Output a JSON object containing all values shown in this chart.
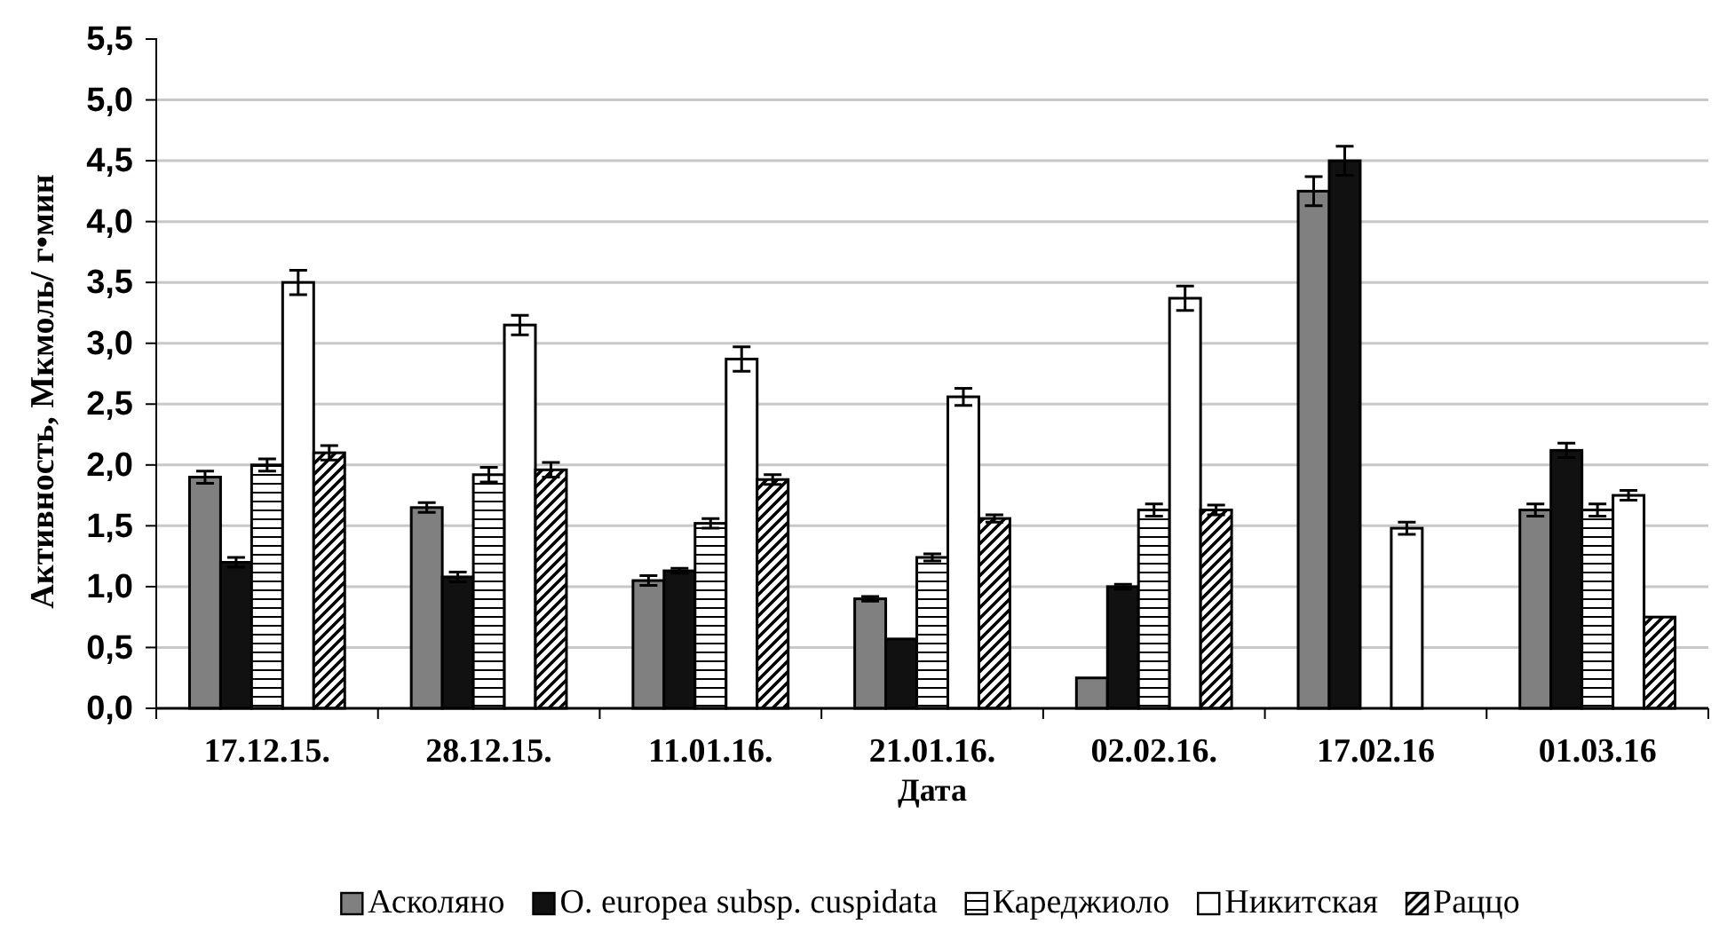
{
  "chart_data": {
    "type": "bar",
    "xlabel": "Дата",
    "ylabel": "Активность,  Мкмоль/ г•мин",
    "categories": [
      "17.12.15.",
      "28.12.15.",
      "11.01.16.",
      "21.01.16.",
      "02.02.16.",
      "17.02.16",
      "01.03.16"
    ],
    "series": [
      {
        "name": "Асколяно",
        "color": "#808080",
        "values": [
          1.9,
          1.65,
          1.05,
          0.9,
          0.25,
          4.25,
          1.63
        ],
        "errors": [
          0.05,
          0.04,
          0.04,
          0.02,
          null,
          0.12,
          0.05
        ]
      },
      {
        "name": "O. europea subsp. cuspidata",
        "color": "#111111",
        "values": [
          1.2,
          1.08,
          1.13,
          0.57,
          1.0,
          4.5,
          2.12
        ],
        "errors": [
          0.04,
          0.04,
          0.02,
          null,
          0.02,
          0.12,
          0.06
        ]
      },
      {
        "name": "Кареджиоло",
        "color": "#000000",
        "values": [
          2.0,
          1.92,
          1.52,
          1.24,
          1.63,
          null,
          1.63
        ],
        "errors": [
          0.05,
          0.06,
          0.04,
          0.03,
          0.05,
          null,
          0.05
        ]
      },
      {
        "name": "Никитская",
        "color": "#ffffff",
        "values": [
          3.5,
          3.15,
          2.87,
          2.56,
          3.37,
          1.48,
          1.75
        ],
        "errors": [
          0.1,
          0.08,
          0.1,
          0.07,
          0.1,
          0.05,
          0.04
        ]
      },
      {
        "name": "Раццо",
        "color": "#000000",
        "values": [
          2.1,
          1.96,
          1.88,
          1.56,
          1.63,
          null,
          0.75
        ],
        "errors": [
          0.06,
          0.06,
          0.04,
          0.03,
          0.04,
          null,
          null
        ]
      }
    ],
    "ylim": [
      0,
      5.5
    ],
    "yticks": [
      {
        "value": 0,
        "label": "0,0"
      },
      {
        "value": 0.5,
        "label": "0,5"
      },
      {
        "value": 1,
        "label": "1,0"
      },
      {
        "value": 1.5,
        "label": "1,5"
      },
      {
        "value": 2,
        "label": "2,0"
      },
      {
        "value": 2.5,
        "label": "2,5"
      },
      {
        "value": 3,
        "label": "3,0"
      },
      {
        "value": 3.5,
        "label": "3,5"
      },
      {
        "value": 4,
        "label": "4,0"
      },
      {
        "value": 4.5,
        "label": "4,5"
      },
      {
        "value": 5,
        "label": "5,0"
      },
      {
        "value": 5.5,
        "label": "5,5"
      }
    ],
    "grid": "y",
    "legend": "bottom"
  }
}
